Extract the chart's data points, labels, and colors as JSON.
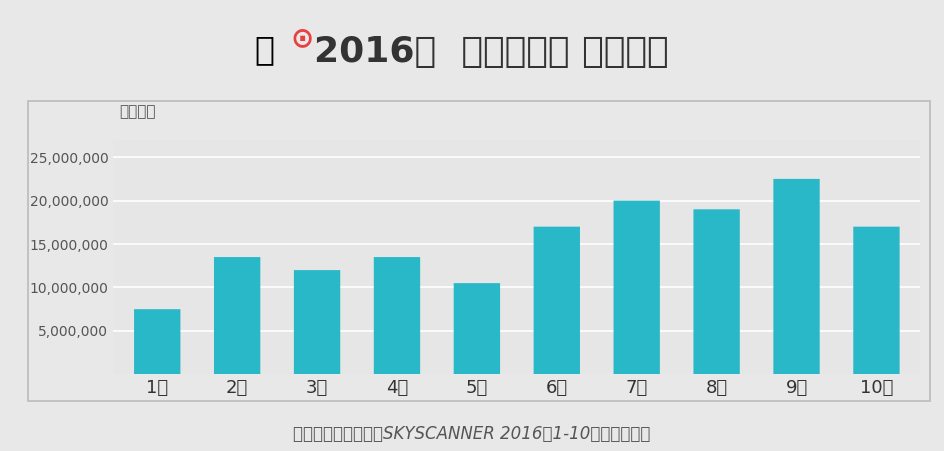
{
  "months": [
    "1月",
    "2月",
    "3月",
    "4月",
    "5月",
    "6月",
    "7月",
    "8月",
    "9月",
    "10月"
  ],
  "values": [
    7500000,
    13500000,
    12000000,
    13500000,
    10500000,
    17000000,
    20000000,
    19000000,
    22500000,
    17000000
  ],
  "bar_color": "#29B8C8",
  "chart_bg_color": "#e6e6e6",
  "outer_bg_color": "#e8e8e8",
  "title_color": "#333333",
  "pin_color": "#e84040",
  "ylabel_text": "搜索次数",
  "title_main": "2016年  出境自由行 全年趋势",
  "source_text": "数据来源：基于天巡SKYSCANNER 2016年1-10月的搜索数据",
  "ylim": [
    0,
    27000000
  ],
  "yticks": [
    5000000,
    10000000,
    15000000,
    20000000,
    25000000
  ],
  "ytick_labels": [
    "5,000,000",
    "10,000,000",
    "15,000,000",
    "20,000,000",
    "25,000,000"
  ],
  "title_fontsize": 26,
  "axis_fontsize": 11,
  "source_fontsize": 12
}
